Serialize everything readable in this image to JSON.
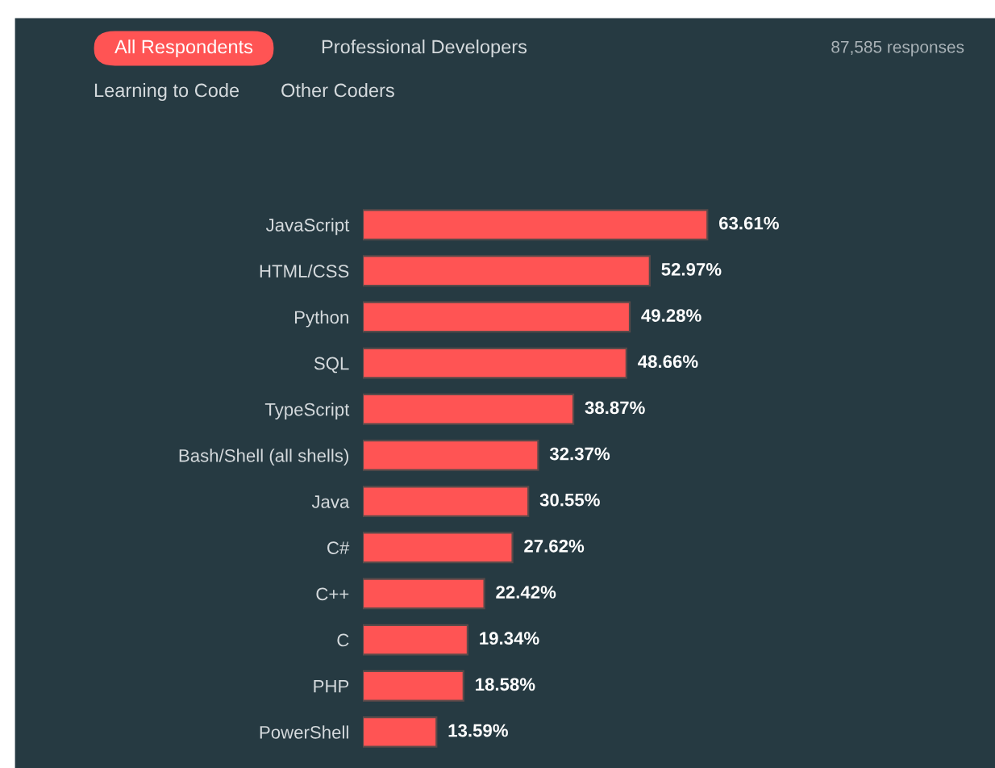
{
  "chart_data": {
    "type": "bar",
    "orientation": "horizontal",
    "value_labels": [
      "63.61%",
      "52.97%",
      "49.28%",
      "48.66%",
      "38.87%",
      "32.37%",
      "30.55%",
      "27.62%",
      "22.42%",
      "19.34%",
      "18.58%",
      "13.59%"
    ],
    "categories": [
      "JavaScript",
      "HTML/CSS",
      "Python",
      "SQL",
      "TypeScript",
      "Bash/Shell (all shells)",
      "Java",
      "C#",
      "C++",
      "C",
      "PHP",
      "PowerShell"
    ],
    "values": [
      63.61,
      52.97,
      49.28,
      48.66,
      38.87,
      32.37,
      30.55,
      27.62,
      22.42,
      19.34,
      18.58,
      13.59
    ],
    "color": "#ff5454",
    "annotations": [
      "All Respondents",
      "Professional Developers",
      "Learning to Code",
      "Other Coders",
      "87,585 responses"
    ]
  }
}
